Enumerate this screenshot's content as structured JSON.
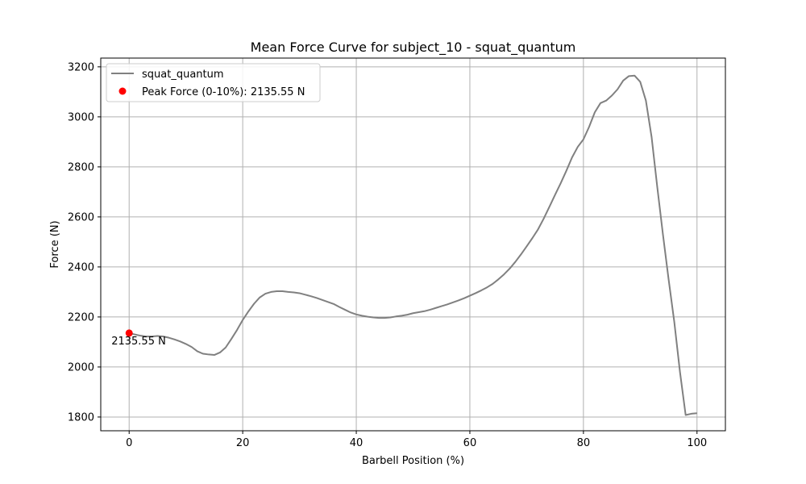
{
  "chart_data": {
    "type": "line",
    "title": "Mean Force Curve for subject_10 - squat_quantum",
    "xlabel": "Barbell Position (%)",
    "ylabel": "Force (N)",
    "xlim": [
      -5,
      105
    ],
    "ylim": [
      1745,
      3235
    ],
    "xticks": [
      0,
      20,
      40,
      60,
      80,
      100
    ],
    "yticks": [
      1800,
      2000,
      2200,
      2400,
      2600,
      2800,
      3000,
      3200
    ],
    "grid": true,
    "legend_position": "top-left",
    "series": [
      {
        "name": "squat_quantum",
        "color": "#808080",
        "x": [
          0,
          1,
          2,
          3,
          4,
          5,
          6,
          7,
          8,
          9,
          10,
          11,
          12,
          13,
          14,
          15,
          16,
          17,
          18,
          19,
          20,
          21,
          22,
          23,
          24,
          25,
          26,
          27,
          28,
          29,
          30,
          31,
          32,
          33,
          34,
          35,
          36,
          37,
          38,
          39,
          40,
          41,
          42,
          43,
          44,
          45,
          46,
          47,
          48,
          49,
          50,
          51,
          52,
          53,
          54,
          55,
          56,
          57,
          58,
          59,
          60,
          61,
          62,
          63,
          64,
          65,
          66,
          67,
          68,
          69,
          70,
          71,
          72,
          73,
          74,
          75,
          76,
          77,
          78,
          79,
          80,
          81,
          82,
          83,
          84,
          85,
          86,
          87,
          88,
          89,
          90,
          91,
          92,
          93,
          94,
          95,
          96,
          97,
          98,
          99,
          100
        ],
        "y": [
          2135,
          2130,
          2125,
          2122,
          2122,
          2124,
          2122,
          2117,
          2110,
          2102,
          2092,
          2080,
          2063,
          2053,
          2050,
          2048,
          2058,
          2078,
          2112,
          2148,
          2188,
          2222,
          2253,
          2278,
          2293,
          2300,
          2303,
          2303,
          2300,
          2298,
          2295,
          2289,
          2283,
          2276,
          2268,
          2260,
          2252,
          2240,
          2229,
          2218,
          2210,
          2205,
          2201,
          2198,
          2196,
          2196,
          2198,
          2202,
          2205,
          2209,
          2215,
          2219,
          2223,
          2229,
          2236,
          2243,
          2250,
          2258,
          2266,
          2275,
          2285,
          2295,
          2306,
          2318,
          2332,
          2350,
          2370,
          2393,
          2420,
          2450,
          2482,
          2515,
          2550,
          2593,
          2640,
          2688,
          2735,
          2785,
          2838,
          2880,
          2910,
          2960,
          3018,
          3055,
          3065,
          3085,
          3110,
          3145,
          3163,
          3165,
          3140,
          3065,
          2920,
          2720,
          2530,
          2350,
          2180,
          1980,
          1808,
          1813,
          1815
        ]
      }
    ],
    "peak": {
      "legend_label": "Peak Force (0-10%): 2135.55 N",
      "x": 0,
      "y": 2135.55,
      "label": "2135.55 N",
      "color": "#ff0000"
    }
  }
}
